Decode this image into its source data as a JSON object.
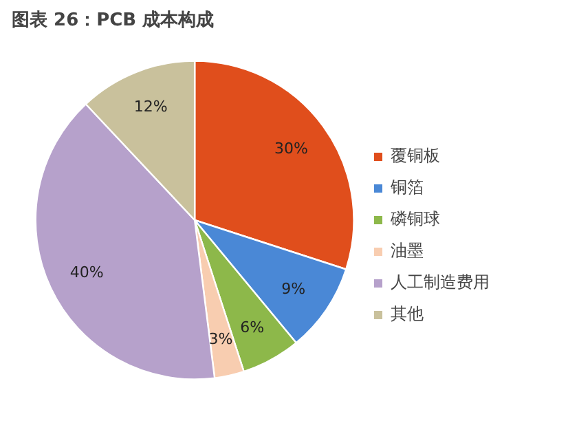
{
  "chart_data": {
    "type": "pie",
    "title": "图表 26：PCB 成本构成",
    "categories": [
      "覆铜板",
      "铜箔",
      "磷铜球",
      "油墨",
      "人工制造费用",
      "其他"
    ],
    "values": [
      30,
      9,
      6,
      3,
      40,
      12
    ],
    "value_labels": [
      "30%",
      "9%",
      "6%",
      "3%",
      "40%",
      "12%"
    ],
    "colors": [
      "#e04e1c",
      "#4a88d6",
      "#8db84a",
      "#f8cdb0",
      "#b6a1cb",
      "#c9c19c"
    ],
    "legend": "right"
  }
}
